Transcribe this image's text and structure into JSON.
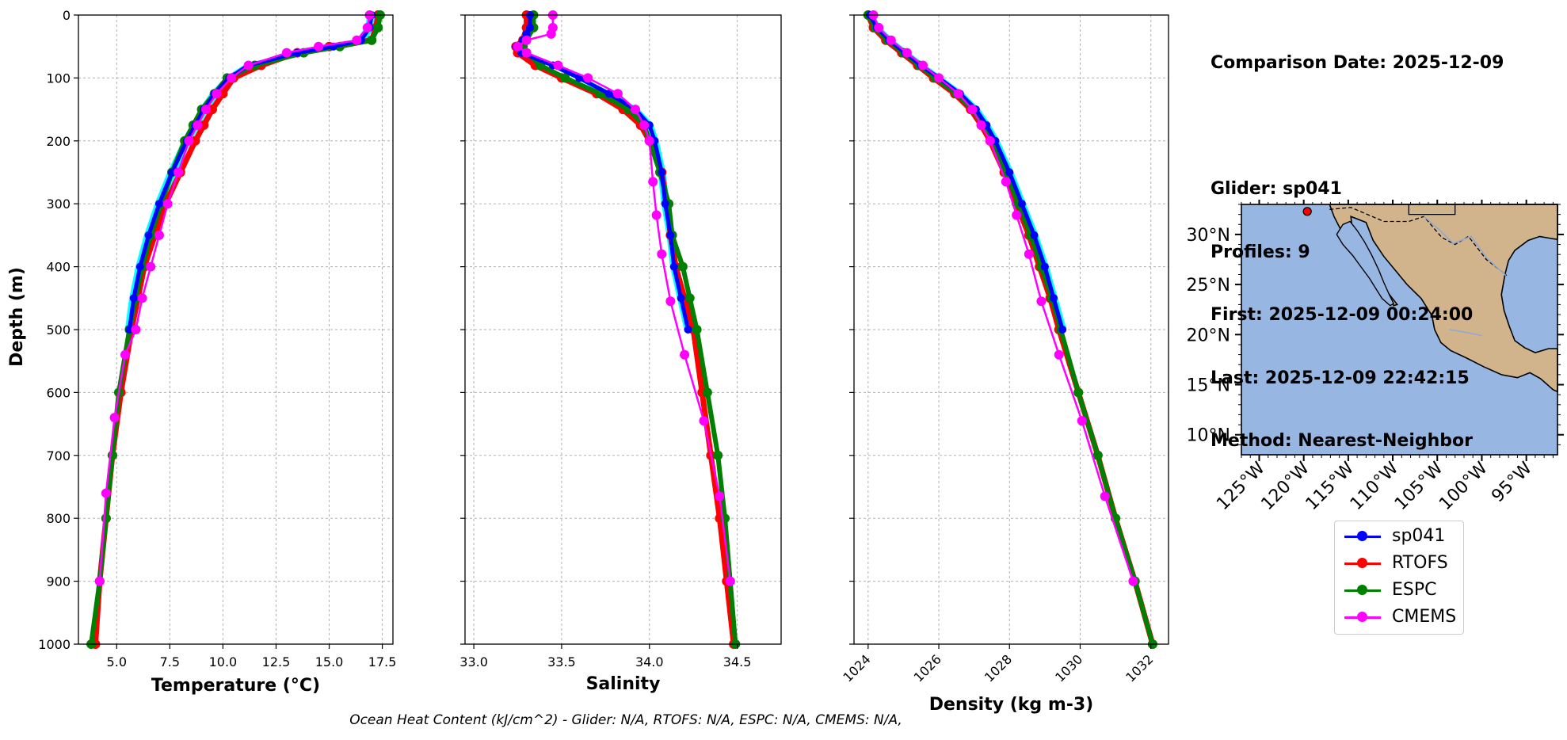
{
  "info": {
    "comparison_date": "Comparison Date: 2025-12-09",
    "glider": "Glider: sp041",
    "profiles": "Profiles: 9",
    "first": "First: 2025-12-09 00:24:00",
    "last": "Last: 2025-12-09 22:42:15",
    "method": "Method: Nearest-Neighbor"
  },
  "footnote": "Ocean Heat Content (kJ/cm^2) - Glider: N/A,  RTOFS: N/A,  ESPC: N/A,  CMEMS: N/A,",
  "colors": {
    "sp041": "#0000ff",
    "sp041_profiles": "#00ffff",
    "RTOFS": "#ff0000",
    "ESPC": "#008000",
    "CMEMS": "#ff00ff",
    "ocean": "#97b6e1",
    "land": "#d2b48c",
    "grid": "#b0b0b0"
  },
  "legend": [
    {
      "name": "sp041",
      "color": "#0000ff"
    },
    {
      "name": "RTOFS",
      "color": "#ff0000"
    },
    {
      "name": "ESPC",
      "color": "#008000"
    },
    {
      "name": "CMEMS",
      "color": "#ff00ff"
    }
  ],
  "chart_data": [
    {
      "type": "line",
      "xlabel": "Temperature (°C)",
      "ylabel": "Depth (m)",
      "xlim": [
        3.2,
        18.0
      ],
      "ylim": [
        1000,
        0
      ],
      "xticks": [
        5.0,
        7.5,
        10.0,
        12.5,
        15.0,
        17.5
      ],
      "xtick_labels": [
        "5.0",
        "7.5",
        "10.0",
        "12.5",
        "15.0",
        "17.5"
      ],
      "yticks": [
        0,
        100,
        200,
        300,
        400,
        500,
        600,
        700,
        800,
        900,
        1000
      ],
      "grid": true,
      "series": [
        {
          "name": "sp041",
          "depth": [
            0,
            20,
            40,
            50,
            60,
            80,
            100,
            125,
            150,
            175,
            200,
            250,
            300,
            350,
            400,
            450,
            500
          ],
          "values": [
            17.0,
            16.9,
            16.5,
            15.2,
            13.5,
            11.2,
            10.3,
            9.6,
            9.1,
            8.7,
            8.3,
            7.6,
            7.0,
            6.5,
            6.1,
            5.8,
            5.6
          ]
        },
        {
          "name": "RTOFS",
          "depth": [
            0,
            20,
            40,
            50,
            60,
            80,
            100,
            125,
            150,
            175,
            200,
            250,
            300,
            350,
            400,
            450,
            500,
            600,
            700,
            800,
            900,
            1000
          ],
          "values": [
            17.3,
            17.2,
            17.0,
            15.0,
            13.5,
            11.8,
            10.5,
            10.0,
            9.5,
            9.1,
            8.7,
            8.0,
            7.3,
            6.8,
            6.3,
            6.0,
            5.7,
            5.2,
            4.8,
            4.5,
            4.2,
            4.0
          ]
        },
        {
          "name": "ESPC",
          "depth": [
            0,
            20,
            40,
            50,
            60,
            80,
            100,
            125,
            150,
            175,
            200,
            250,
            300,
            350,
            400,
            450,
            500,
            600,
            700,
            800,
            900,
            1000
          ],
          "values": [
            17.4,
            17.3,
            17.0,
            15.5,
            13.8,
            11.5,
            10.2,
            9.6,
            9.0,
            8.6,
            8.2,
            7.6,
            7.1,
            6.6,
            6.2,
            5.9,
            5.6,
            5.1,
            4.8,
            4.5,
            4.2,
            3.8
          ]
        },
        {
          "name": "CMEMS",
          "depth": [
            0,
            20,
            40,
            50,
            60,
            80,
            100,
            125,
            150,
            175,
            200,
            250,
            300,
            350,
            400,
            450,
            500,
            540,
            640,
            760,
            900
          ],
          "values": [
            16.9,
            16.8,
            16.3,
            14.5,
            13.0,
            11.2,
            10.4,
            9.7,
            9.2,
            8.8,
            8.4,
            7.9,
            7.4,
            7.0,
            6.6,
            6.2,
            5.9,
            5.4,
            4.9,
            4.5,
            4.2
          ]
        }
      ]
    },
    {
      "type": "line",
      "xlabel": "Salinity",
      "ylim": [
        1000,
        0
      ],
      "xlim": [
        32.95,
        34.75
      ],
      "xticks": [
        33.0,
        33.5,
        34.0,
        34.5
      ],
      "xtick_labels": [
        "33.0",
        "33.5",
        "34.0",
        "34.5"
      ],
      "grid": true,
      "series": [
        {
          "name": "sp041",
          "depth": [
            0,
            20,
            30,
            40,
            50,
            60,
            80,
            100,
            125,
            150,
            175,
            200,
            250,
            300,
            350,
            400,
            450,
            500
          ],
          "values": [
            33.32,
            33.32,
            33.3,
            33.28,
            33.24,
            33.27,
            33.45,
            33.6,
            33.77,
            33.92,
            34.0,
            34.03,
            34.07,
            34.09,
            34.12,
            34.14,
            34.18,
            34.22
          ]
        },
        {
          "name": "RTOFS",
          "depth": [
            0,
            20,
            40,
            50,
            60,
            80,
            100,
            125,
            150,
            175,
            200,
            250,
            300,
            350,
            400,
            450,
            500,
            600,
            700,
            800,
            900,
            1000
          ],
          "values": [
            33.3,
            33.3,
            33.28,
            33.24,
            33.25,
            33.35,
            33.5,
            33.7,
            33.85,
            33.95,
            34.0,
            34.07,
            34.1,
            34.12,
            34.15,
            34.2,
            34.25,
            34.3,
            34.35,
            34.4,
            34.44,
            34.48
          ]
        },
        {
          "name": "ESPC",
          "depth": [
            0,
            20,
            40,
            50,
            60,
            80,
            100,
            125,
            150,
            175,
            200,
            250,
            300,
            350,
            400,
            450,
            500,
            600,
            700,
            800,
            900,
            1000
          ],
          "values": [
            33.34,
            33.34,
            33.3,
            33.28,
            33.3,
            33.38,
            33.52,
            33.72,
            33.88,
            33.97,
            34.0,
            34.06,
            34.11,
            34.13,
            34.19,
            34.23,
            34.27,
            34.33,
            34.39,
            34.43,
            34.46,
            34.49
          ]
        },
        {
          "name": "CMEMS",
          "depth": [
            0,
            20,
            30,
            40,
            50,
            60,
            80,
            100,
            125,
            150,
            175,
            200,
            265,
            318,
            380,
            455,
            540,
            645,
            765,
            900
          ],
          "values": [
            33.45,
            33.45,
            33.44,
            33.3,
            33.25,
            33.3,
            33.48,
            33.65,
            33.82,
            33.92,
            33.97,
            34.0,
            34.02,
            34.04,
            34.07,
            34.12,
            34.2,
            34.31,
            34.4,
            34.46
          ]
        }
      ]
    },
    {
      "type": "line",
      "xlabel": "Density (kg m-3)",
      "ylim": [
        1000,
        0
      ],
      "xlim": [
        1023.6,
        1032.5
      ],
      "xticks": [
        1024,
        1026,
        1028,
        1030,
        1032
      ],
      "xtick_labels": [
        "1024",
        "1026",
        "1028",
        "1030",
        "1032"
      ],
      "grid": true,
      "series": [
        {
          "name": "sp041",
          "depth": [
            0,
            20,
            40,
            60,
            80,
            100,
            125,
            150,
            175,
            200,
            250,
            300,
            350,
            400,
            450,
            500
          ],
          "values": [
            1024.05,
            1024.25,
            1024.6,
            1025.05,
            1025.5,
            1026.0,
            1026.6,
            1027.05,
            1027.35,
            1027.6,
            1028.0,
            1028.35,
            1028.7,
            1029.0,
            1029.25,
            1029.5
          ]
        },
        {
          "name": "RTOFS",
          "depth": [
            0,
            20,
            40,
            60,
            80,
            100,
            125,
            150,
            175,
            200,
            250,
            300,
            350,
            400,
            450,
            500,
            600,
            700,
            800,
            900,
            1000
          ],
          "values": [
            1024.0,
            1024.15,
            1024.5,
            1024.95,
            1025.4,
            1025.85,
            1026.45,
            1026.9,
            1027.2,
            1027.45,
            1027.85,
            1028.2,
            1028.55,
            1028.85,
            1029.15,
            1029.4,
            1029.95,
            1030.5,
            1031.0,
            1031.55,
            1032.05
          ]
        },
        {
          "name": "ESPC",
          "depth": [
            0,
            20,
            40,
            60,
            80,
            100,
            125,
            150,
            175,
            200,
            250,
            300,
            350,
            400,
            450,
            500,
            600,
            700,
            800,
            900,
            1000
          ],
          "values": [
            1024.0,
            1024.2,
            1024.55,
            1025.0,
            1025.45,
            1025.9,
            1026.5,
            1026.95,
            1027.25,
            1027.5,
            1027.9,
            1028.25,
            1028.6,
            1028.9,
            1029.2,
            1029.45,
            1029.95,
            1030.5,
            1031.0,
            1031.55,
            1032.05
          ]
        },
        {
          "name": "CMEMS",
          "depth": [
            0,
            20,
            40,
            60,
            80,
            100,
            125,
            150,
            175,
            200,
            265,
            318,
            380,
            455,
            540,
            645,
            765,
            900
          ],
          "values": [
            1024.15,
            1024.3,
            1024.65,
            1025.1,
            1025.55,
            1026.0,
            1026.55,
            1026.95,
            1027.2,
            1027.45,
            1027.9,
            1028.2,
            1028.55,
            1028.9,
            1029.4,
            1030.05,
            1030.7,
            1031.5
          ]
        }
      ]
    }
  ],
  "map": {
    "lon_range": [
      -127,
      -91.5
    ],
    "lat_range": [
      8,
      33
    ],
    "xtick_labels": [
      "125°W",
      "120°W",
      "115°W",
      "110°W",
      "105°W",
      "100°W",
      "95°W"
    ],
    "xtick_lons": [
      -125,
      -120,
      -115,
      -110,
      -105,
      -100,
      -95
    ],
    "ytick_labels": [
      "10°N",
      "15°N",
      "20°N",
      "25°N",
      "30°N"
    ],
    "ytick_lats": [
      10,
      15,
      20,
      25,
      30
    ],
    "glider_position": {
      "lon": -119.6,
      "lat": 32.3
    }
  }
}
